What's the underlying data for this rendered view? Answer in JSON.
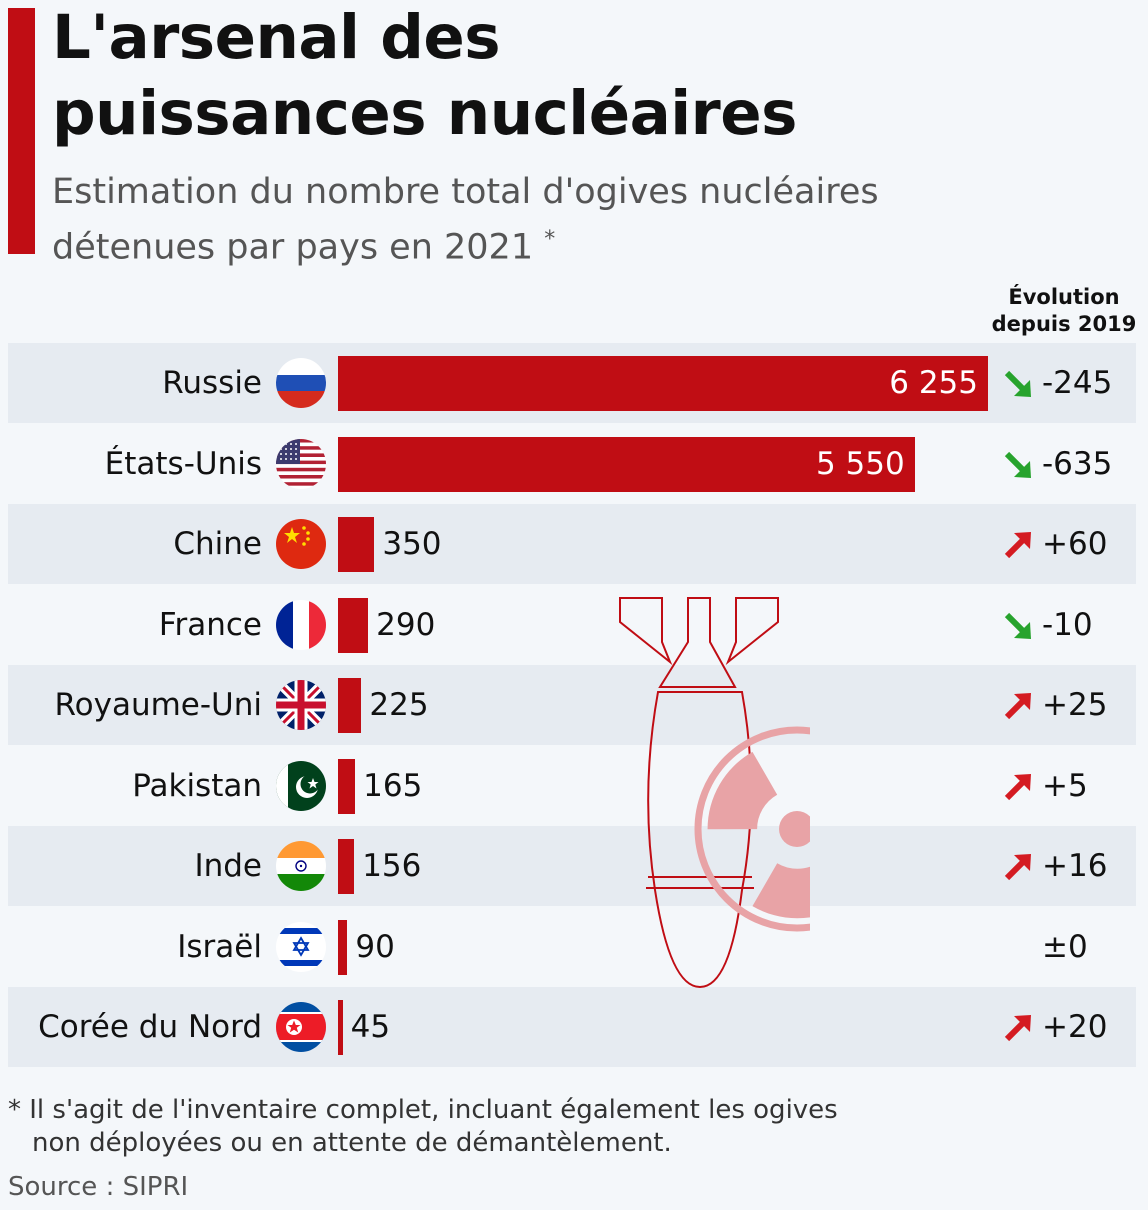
{
  "header": {
    "title_line1": "L'arsenal des",
    "title_line2": "puissances nucléaires",
    "subtitle_line1": "Estimation du nombre total d'ogives nucléaires",
    "subtitle_line2": "détenues par pays en 2021",
    "subtitle_mark": "*"
  },
  "evolution_header": {
    "line1": "Évolution",
    "line2": "depuis 2019"
  },
  "chart_data": {
    "type": "bar",
    "orientation": "horizontal",
    "title": "L'arsenal des puissances nucléaires",
    "subtitle": "Estimation du nombre total d'ogives nucléaires détenues par pays en 2021 *",
    "categories": [
      "Russie",
      "États-Unis",
      "Chine",
      "France",
      "Royaume-Uni",
      "Pakistan",
      "Inde",
      "Israël",
      "Corée du Nord"
    ],
    "values": [
      6255,
      5550,
      350,
      290,
      225,
      165,
      156,
      90,
      45
    ],
    "value_labels": [
      "6 255",
      "5 550",
      "350",
      "290",
      "225",
      "165",
      "156",
      "90",
      "45"
    ],
    "evolution_labels": [
      "-245",
      "-635",
      "+60",
      "-10",
      "+25",
      "+5",
      "+16",
      "±0",
      "+20"
    ],
    "evolution_directions": [
      "down",
      "down",
      "up",
      "down",
      "up",
      "up",
      "up",
      "none",
      "up"
    ],
    "flags": [
      "russia-flag",
      "usa-flag",
      "china-flag",
      "france-flag",
      "uk-flag",
      "pakistan-flag",
      "india-flag",
      "israel-flag",
      "north-korea-flag"
    ],
    "xlim": [
      0,
      6255
    ],
    "bar_color": "#c00d14",
    "up_color": "#d41b22",
    "down_color": "#27a32d"
  },
  "footnote": {
    "line1": "* Il s'agit de l'inventaire complet, incluant également les ogives",
    "line2": "non déployées ou en attente de démantèlement."
  },
  "source": "Source : SIPRI",
  "colors": {
    "accent": "#c00d14",
    "background": "#f4f7fa",
    "row_shade": "#e6ebf1"
  }
}
